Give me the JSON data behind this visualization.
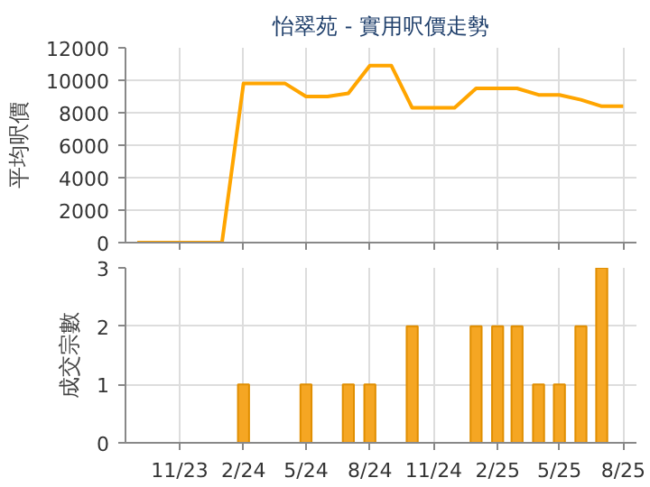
{
  "chart_data": [
    {
      "type": "line",
      "title": "怡翠苑 - 實用呎價走勢",
      "ylabel": "平均呎價",
      "color": "#ffa500",
      "x": [
        "2023-09",
        "2023-10",
        "2023-11",
        "2023-12",
        "2024-01",
        "2024-02",
        "2024-03",
        "2024-04",
        "2024-05",
        "2024-06",
        "2024-07",
        "2024-08",
        "2024-09",
        "2024-10",
        "2024-11",
        "2024-12",
        "2025-01",
        "2025-02",
        "2025-03",
        "2025-04",
        "2025-05",
        "2025-06",
        "2025-07",
        "2025-08"
      ],
      "values": [
        0,
        0,
        0,
        0,
        0,
        9800,
        9800,
        9800,
        9000,
        9000,
        9200,
        10900,
        10900,
        8300,
        8300,
        8300,
        9500,
        9500,
        9500,
        9100,
        9100,
        8800,
        8400,
        8400
      ],
      "xlim": [
        "2023-08-15",
        "2025-08-20"
      ],
      "xticks": [
        {
          "value": "2023-11",
          "label": null
        },
        {
          "value": "2024-02",
          "label": null
        },
        {
          "value": "2024-05",
          "label": null
        },
        {
          "value": "2024-08",
          "label": null
        },
        {
          "value": "2024-11",
          "label": null
        },
        {
          "value": "2025-02",
          "label": null
        },
        {
          "value": "2025-05",
          "label": null
        },
        {
          "value": "2025-08",
          "label": null
        }
      ],
      "ylim": [
        0,
        12000
      ],
      "yticks": [
        0,
        2000,
        4000,
        6000,
        8000,
        10000,
        12000
      ],
      "grid": true,
      "tick_labels": "y"
    },
    {
      "type": "bar",
      "ylabel": "成交宗數",
      "color": "#f5a623",
      "x": [
        "2024-02",
        "2024-05",
        "2024-07",
        "2024-08",
        "2024-10",
        "2025-01",
        "2025-02",
        "2025-03",
        "2025-04",
        "2025-05",
        "2025-06",
        "2025-07"
      ],
      "values": [
        1,
        1,
        1,
        1,
        2,
        2,
        2,
        2,
        1,
        1,
        2,
        3
      ],
      "xlim": [
        "2023-08-15",
        "2025-08-20"
      ],
      "xticks": [
        {
          "value": "2023-11",
          "label": "11/23"
        },
        {
          "value": "2024-02",
          "label": "2/24"
        },
        {
          "value": "2024-05",
          "label": "5/24"
        },
        {
          "value": "2024-08",
          "label": "8/24"
        },
        {
          "value": "2024-11",
          "label": "11/24"
        },
        {
          "value": "2025-02",
          "label": "2/25"
        },
        {
          "value": "2025-05",
          "label": "5/25"
        },
        {
          "value": "2025-08",
          "label": "8/25"
        }
      ],
      "ylim": [
        0,
        3
      ],
      "yticks": [
        0,
        1,
        2,
        3
      ],
      "grid": true
    }
  ]
}
